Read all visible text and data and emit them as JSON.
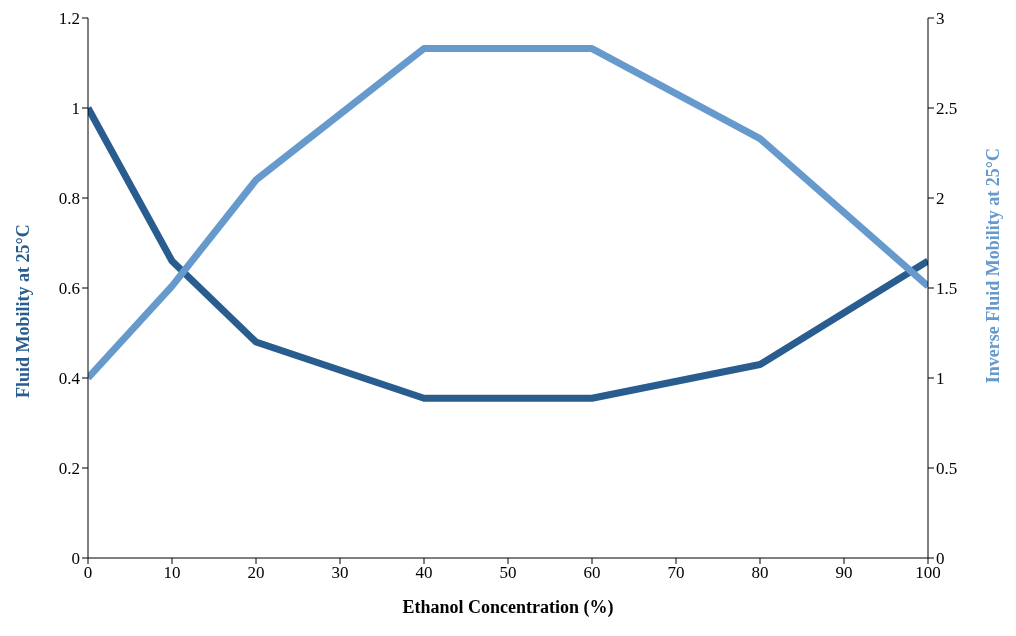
{
  "chart_data": {
    "type": "line",
    "xlabel": "Ethanol Concentration (%)",
    "ylabel": "Fluid Mobility at 25°C",
    "y2label": "Inverse Fluid Mobility at 25°C",
    "x": [
      0,
      10,
      20,
      40,
      50,
      60,
      80,
      100
    ],
    "series": [
      {
        "color": "#2a5d8f",
        "values": [
          1.0,
          0.66,
          0.48,
          0.355,
          0.355,
          0.355,
          0.43,
          0.66
        ]
      },
      {
        "color": "#6699cc",
        "axis": "y2",
        "values": [
          1.0,
          1.51,
          2.1,
          2.83,
          2.83,
          2.83,
          2.33,
          1.51
        ]
      }
    ],
    "xlim": [
      0,
      100
    ],
    "xticks": [
      0,
      10,
      20,
      30,
      40,
      50,
      60,
      70,
      80,
      90,
      100
    ],
    "ylim": [
      0,
      1.2
    ],
    "yticks": [
      0,
      0.2,
      0.4,
      0.6,
      0.8,
      1,
      1.2
    ],
    "y2lim": [
      0,
      3
    ],
    "y2ticks": [
      0,
      0.5,
      1,
      1.5,
      2,
      2.5,
      3
    ],
    "grid": false,
    "legend": false,
    "marker": "none",
    "line_style": "solid"
  }
}
